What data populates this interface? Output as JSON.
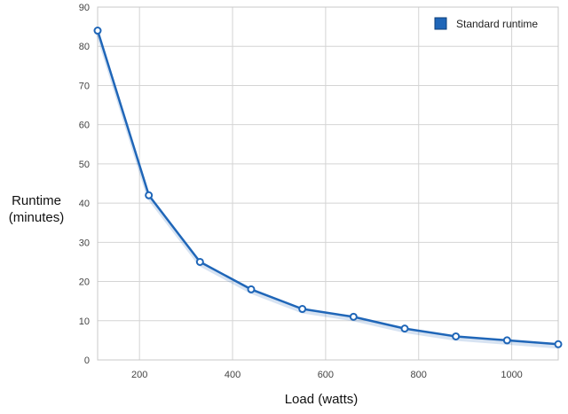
{
  "chart_data": {
    "type": "line",
    "title": "",
    "xlabel": "Load (watts)",
    "ylabel_lines": [
      "Runtime",
      "(minutes)"
    ],
    "xlim": [
      110,
      1100
    ],
    "ylim": [
      0,
      90
    ],
    "x_ticks": [
      200,
      400,
      600,
      800,
      1000
    ],
    "y_ticks": [
      0,
      10,
      20,
      30,
      40,
      50,
      60,
      70,
      80,
      90
    ],
    "grid": true,
    "legend_position": "top-right",
    "series": [
      {
        "name": "Standard runtime",
        "color": "#1f66b8",
        "x": [
          110,
          220,
          330,
          440,
          550,
          660,
          770,
          880,
          990,
          1100
        ],
        "y": [
          84,
          42,
          25,
          18,
          13,
          11,
          8,
          6,
          5,
          4
        ]
      }
    ]
  }
}
